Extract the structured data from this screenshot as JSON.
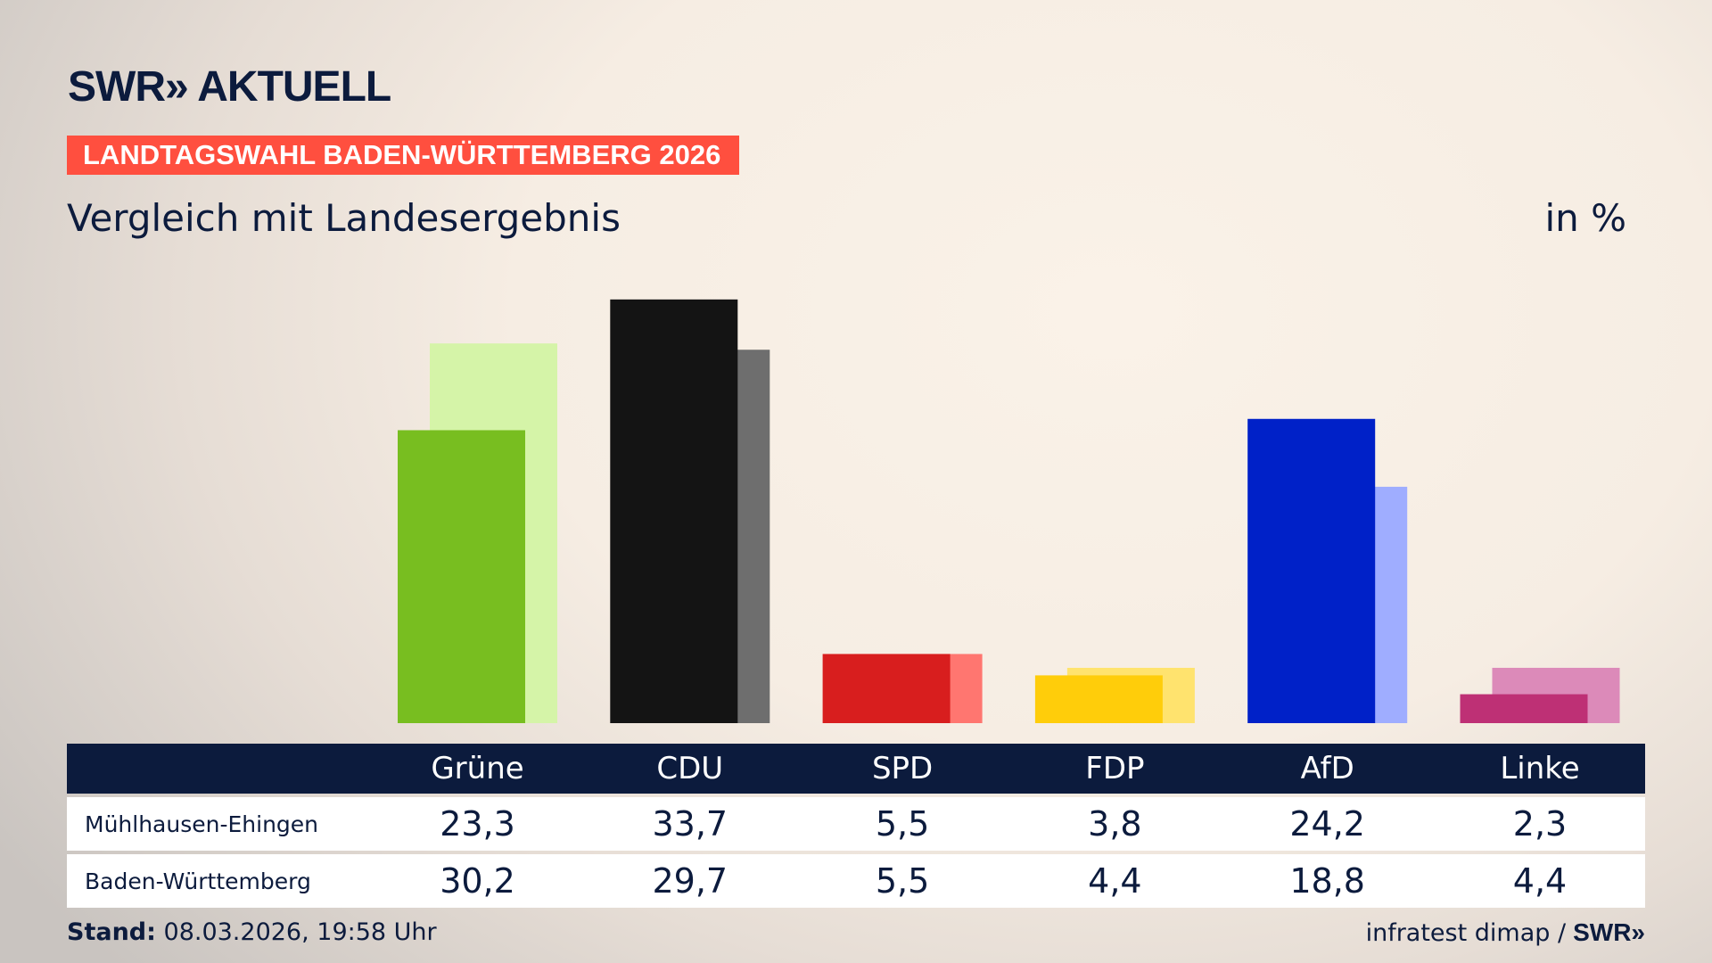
{
  "header": {
    "logo": "SWR» AKTUELL",
    "banner": "LANDTAGSWAHL BADEN-WÜRTTEMBERG 2026",
    "subtitle": "Vergleich mit Landesergebnis",
    "unit": "in %"
  },
  "chart_data": {
    "type": "bar",
    "categories": [
      "Grüne",
      "CDU",
      "SPD",
      "FDP",
      "AfD",
      "Linke"
    ],
    "series": [
      {
        "name": "Mühlhausen-Ehingen",
        "values": [
          23.3,
          33.7,
          5.5,
          3.8,
          24.2,
          2.3
        ],
        "colors": [
          "#78be20",
          "#141414",
          "#d81e1e",
          "#ffcd0a",
          "#0021c8",
          "#be3075"
        ]
      },
      {
        "name": "Baden-Württemberg",
        "values": [
          30.2,
          29.7,
          5.5,
          4.4,
          18.8,
          4.4
        ],
        "colors": [
          "#d5f4a8",
          "#6e6e6e",
          "#ff7670",
          "#ffe36e",
          "#9fadff",
          "#dc8ab9"
        ]
      }
    ],
    "value_labels": {
      "Mühlhausen-Ehingen": [
        "23,3",
        "33,7",
        "5,5",
        "3,8",
        "24,2",
        "2,3"
      ],
      "Baden-Württemberg": [
        "30,2",
        "29,7",
        "5,5",
        "4,4",
        "18,8",
        "4,4"
      ]
    }
  },
  "footer": {
    "stand_label": "Stand:",
    "stand_value": "08.03.2026, 19:58 Uhr",
    "source": "infratest dimap /",
    "source_logo": "SWR»"
  },
  "colors": {
    "navy": "#0c1b3d",
    "banner": "#ff4f3f"
  }
}
